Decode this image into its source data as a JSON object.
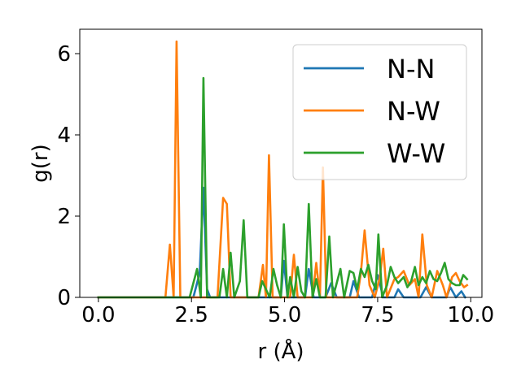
{
  "chart_data": {
    "type": "line",
    "xlabel": "r (Å)",
    "ylabel": "g(r)",
    "xlim": [
      -0.5,
      10.3
    ],
    "ylim": [
      0,
      6.6
    ],
    "xticks": [
      0.0,
      2.5,
      5.0,
      7.5,
      10.0
    ],
    "xtick_labels": [
      "0.0",
      "2.5",
      "5.0",
      "7.5",
      "10.0"
    ],
    "yticks": [
      0,
      2,
      4,
      6
    ],
    "ytick_labels": [
      "0",
      "2",
      "4",
      "6"
    ],
    "grid": false,
    "legend_position": "top-right",
    "series": [
      {
        "name": "N-N",
        "color": "#1f77b4",
        "points": [
          [
            0.0,
            0
          ],
          [
            2.55,
            0
          ],
          [
            2.72,
            0.6
          ],
          [
            2.82,
            2.7
          ],
          [
            2.92,
            0.2
          ],
          [
            3.0,
            0
          ],
          [
            4.9,
            0
          ],
          [
            4.98,
            0.9
          ],
          [
            5.08,
            0
          ],
          [
            5.55,
            0
          ],
          [
            5.65,
            0.7
          ],
          [
            5.78,
            0
          ],
          [
            6.1,
            0
          ],
          [
            6.25,
            0.35
          ],
          [
            6.4,
            0
          ],
          [
            6.75,
            0
          ],
          [
            6.85,
            0.4
          ],
          [
            7.0,
            0
          ],
          [
            7.35,
            0
          ],
          [
            7.5,
            0.55
          ],
          [
            7.65,
            0
          ],
          [
            7.95,
            0
          ],
          [
            8.05,
            0.2
          ],
          [
            8.2,
            0
          ],
          [
            8.65,
            0
          ],
          [
            8.8,
            0.25
          ],
          [
            8.95,
            0
          ],
          [
            9.35,
            0
          ],
          [
            9.45,
            0.25
          ],
          [
            9.6,
            0
          ],
          [
            9.75,
            0.15
          ],
          [
            9.85,
            0
          ]
        ]
      },
      {
        "name": "N-W",
        "color": "#ff7f0e",
        "points": [
          [
            0.0,
            0
          ],
          [
            1.8,
            0
          ],
          [
            1.92,
            1.3
          ],
          [
            2.02,
            0
          ],
          [
            2.1,
            6.3
          ],
          [
            2.2,
            0
          ],
          [
            3.2,
            0
          ],
          [
            3.35,
            2.45
          ],
          [
            3.45,
            2.3
          ],
          [
            3.55,
            0
          ],
          [
            4.3,
            0
          ],
          [
            4.42,
            0.8
          ],
          [
            4.5,
            0
          ],
          [
            4.58,
            3.5
          ],
          [
            4.68,
            0
          ],
          [
            5.15,
            0
          ],
          [
            5.25,
            1.05
          ],
          [
            5.35,
            0
          ],
          [
            5.75,
            0
          ],
          [
            5.85,
            0.85
          ],
          [
            5.95,
            0
          ],
          [
            6.03,
            3.2
          ],
          [
            6.12,
            0
          ],
          [
            6.95,
            0
          ],
          [
            7.05,
            0.6
          ],
          [
            7.15,
            1.65
          ],
          [
            7.28,
            0.3
          ],
          [
            7.42,
            0
          ],
          [
            7.55,
            0.45
          ],
          [
            7.65,
            1.2
          ],
          [
            7.75,
            0
          ],
          [
            7.95,
            0.45
          ],
          [
            8.05,
            0.5
          ],
          [
            8.2,
            0.65
          ],
          [
            8.35,
            0.3
          ],
          [
            8.5,
            0.45
          ],
          [
            8.6,
            0
          ],
          [
            8.7,
            1.55
          ],
          [
            8.82,
            0.3
          ],
          [
            8.95,
            0
          ],
          [
            9.1,
            0.65
          ],
          [
            9.25,
            0.3
          ],
          [
            9.35,
            0
          ],
          [
            9.5,
            0.5
          ],
          [
            9.6,
            0.6
          ],
          [
            9.7,
            0.4
          ],
          [
            9.82,
            0.25
          ],
          [
            9.9,
            0.3
          ]
        ]
      },
      {
        "name": "W-W",
        "color": "#2ca02c",
        "points": [
          [
            0.0,
            0
          ],
          [
            2.45,
            0
          ],
          [
            2.55,
            0.35
          ],
          [
            2.65,
            0.7
          ],
          [
            2.75,
            0
          ],
          [
            2.82,
            5.4
          ],
          [
            2.92,
            0
          ],
          [
            3.25,
            0
          ],
          [
            3.35,
            0.7
          ],
          [
            3.45,
            0
          ],
          [
            3.55,
            1.1
          ],
          [
            3.65,
            0
          ],
          [
            3.8,
            0.4
          ],
          [
            3.9,
            1.9
          ],
          [
            4.0,
            0
          ],
          [
            4.3,
            0
          ],
          [
            4.4,
            0.4
          ],
          [
            4.5,
            0.2
          ],
          [
            4.6,
            0
          ],
          [
            4.7,
            0.7
          ],
          [
            4.8,
            0.3
          ],
          [
            4.9,
            0
          ],
          [
            4.98,
            1.8
          ],
          [
            5.08,
            0
          ],
          [
            5.15,
            0.5
          ],
          [
            5.25,
            0
          ],
          [
            5.35,
            0.75
          ],
          [
            5.45,
            0.15
          ],
          [
            5.55,
            0
          ],
          [
            5.65,
            2.3
          ],
          [
            5.75,
            0
          ],
          [
            5.85,
            0.45
          ],
          [
            5.95,
            0
          ],
          [
            6.1,
            0
          ],
          [
            6.2,
            1.5
          ],
          [
            6.3,
            0
          ],
          [
            6.4,
            0.35
          ],
          [
            6.5,
            0.7
          ],
          [
            6.6,
            0
          ],
          [
            6.75,
            0.65
          ],
          [
            6.85,
            0.6
          ],
          [
            6.95,
            0.2
          ],
          [
            7.05,
            0.7
          ],
          [
            7.15,
            0.5
          ],
          [
            7.25,
            0.8
          ],
          [
            7.35,
            0.4
          ],
          [
            7.45,
            0.2
          ],
          [
            7.52,
            1.55
          ],
          [
            7.62,
            0
          ],
          [
            7.75,
            0.3
          ],
          [
            7.85,
            0.75
          ],
          [
            7.95,
            0.5
          ],
          [
            8.05,
            0.35
          ],
          [
            8.2,
            0.5
          ],
          [
            8.3,
            0.25
          ],
          [
            8.4,
            0.4
          ],
          [
            8.5,
            0.75
          ],
          [
            8.6,
            0.3
          ],
          [
            8.7,
            0.5
          ],
          [
            8.8,
            0.35
          ],
          [
            8.9,
            0.65
          ],
          [
            9.0,
            0.45
          ],
          [
            9.1,
            0.4
          ],
          [
            9.2,
            0.6
          ],
          [
            9.3,
            0.85
          ],
          [
            9.4,
            0.45
          ],
          [
            9.5,
            0.35
          ],
          [
            9.6,
            0.3
          ],
          [
            9.7,
            0.3
          ],
          [
            9.8,
            0.55
          ],
          [
            9.9,
            0.45
          ]
        ]
      }
    ]
  }
}
